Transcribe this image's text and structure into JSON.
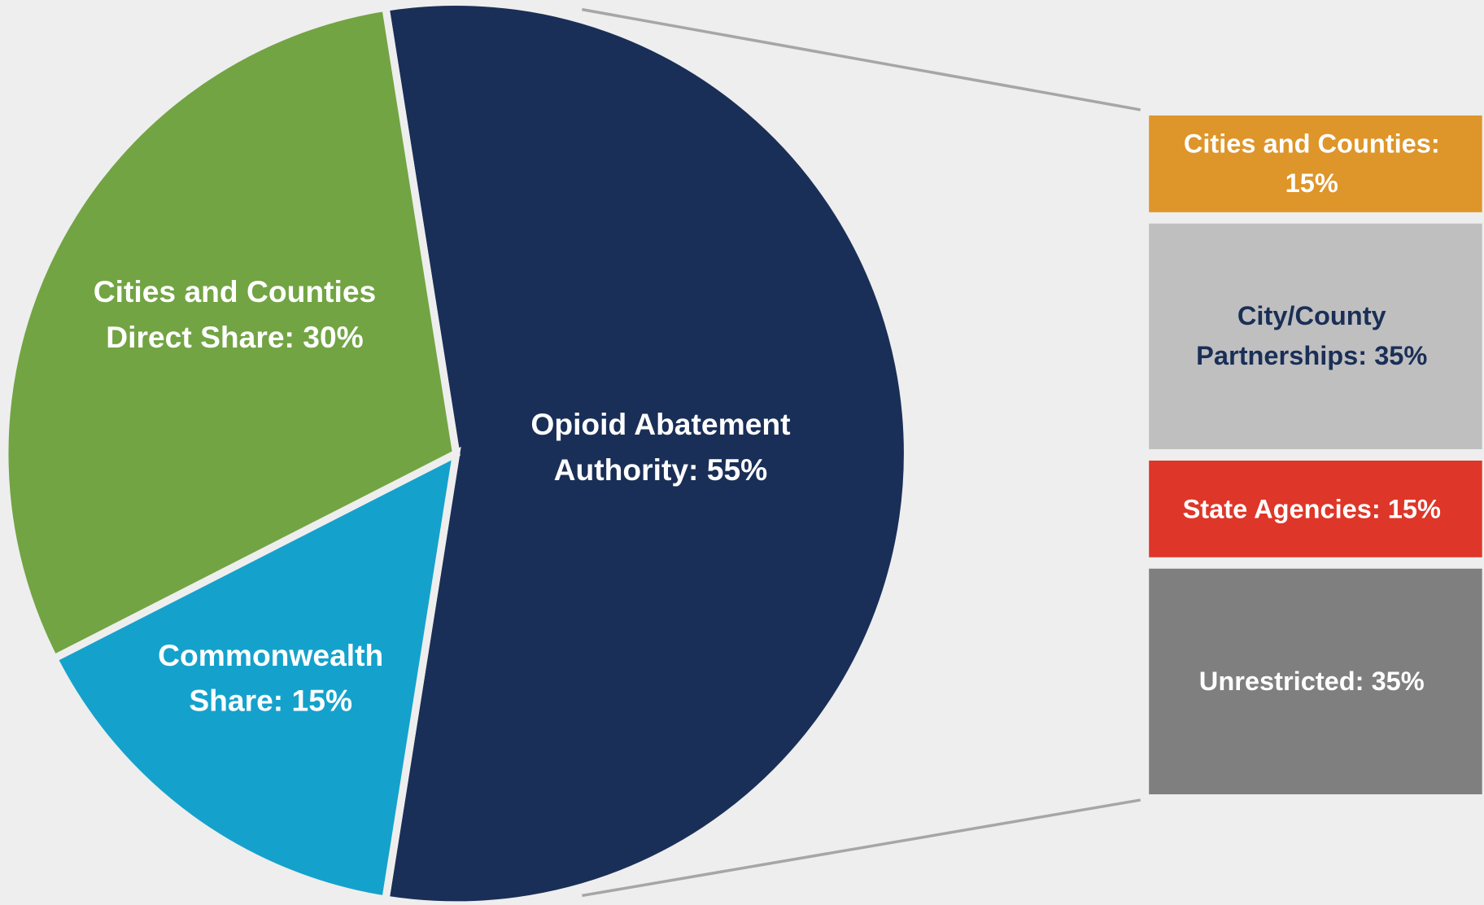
{
  "chart_data": {
    "type": "pie",
    "values": [
      55,
      15,
      30
    ],
    "value_labels": [
      "Opioid Abatement Authority: 55%",
      "Commonwealth Share: 15%",
      "Cities and Counties Direct Share: 30%"
    ],
    "colors": [
      "#1a2f57",
      "#14a2cc",
      "#72a443"
    ],
    "breakdown": {
      "type": "bar",
      "values": [
        15,
        35,
        15,
        35
      ],
      "value_labels": [
        "Cities and Counties: 15%",
        "City/County Partnerships: 35%",
        "State Agencies: 15%",
        "Unrestricted: 35%"
      ],
      "colors": [
        "#de952a",
        "#bfbfbf",
        "#de3628",
        "#7f7f7f"
      ]
    }
  }
}
